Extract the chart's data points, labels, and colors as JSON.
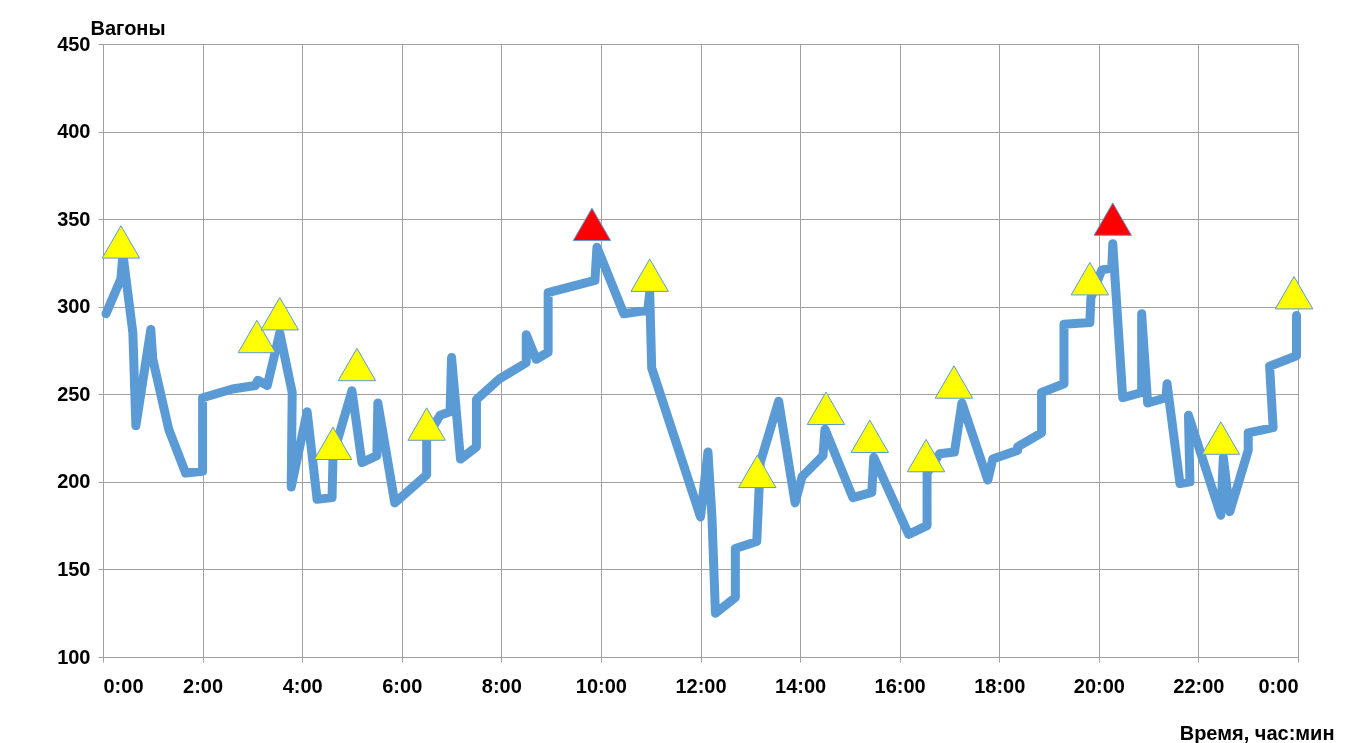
{
  "chart_data": {
    "type": "line",
    "xlabel": "Время, час:мин",
    "ylabel": "Вагоны",
    "xlim": [
      0,
      24
    ],
    "ylim": [
      100,
      450
    ],
    "xticks": [
      {
        "value": 0,
        "label": "0:00"
      },
      {
        "value": 2,
        "label": "2:00"
      },
      {
        "value": 4,
        "label": "4:00"
      },
      {
        "value": 6,
        "label": "6:00"
      },
      {
        "value": 8,
        "label": "8:00"
      },
      {
        "value": 10,
        "label": "10:00"
      },
      {
        "value": 12,
        "label": "12:00"
      },
      {
        "value": 14,
        "label": "14:00"
      },
      {
        "value": 16,
        "label": "16:00"
      },
      {
        "value": 18,
        "label": "18:00"
      },
      {
        "value": 20,
        "label": "20:00"
      },
      {
        "value": 22,
        "label": "22:00"
      },
      {
        "value": 24,
        "label": "0:00"
      }
    ],
    "yticks": [
      100,
      150,
      200,
      250,
      300,
      350,
      400,
      450
    ],
    "grid": true,
    "series": [
      {
        "color": "#5b9bd5",
        "marker": "none",
        "line_style": "solid",
        "x": [
          0.06,
          0.36,
          0.4,
          0.6,
          0.66,
          0.96,
          1.0,
          1.32,
          1.66,
          2.0,
          2.0,
          2.6,
          3.06,
          3.11,
          3.3,
          3.55,
          3.8,
          3.78,
          4.1,
          4.3,
          4.6,
          4.62,
          5.0,
          5.2,
          5.5,
          5.52,
          5.86,
          6.5,
          6.5,
          6.77,
          6.97,
          7.0,
          7.18,
          7.5,
          7.5,
          7.97,
          8.5,
          8.5,
          8.7,
          8.94,
          8.94,
          9.88,
          9.92,
          10.46,
          10.94,
          10.98,
          11.02,
          12.0,
          12.15,
          12.23,
          12.3,
          12.7,
          12.7,
          13.13,
          13.2,
          13.57,
          13.9,
          14.04,
          14.46,
          14.5,
          15.06,
          15.44,
          15.48,
          16.18,
          16.55,
          16.55,
          16.8,
          17.1,
          17.25,
          17.77,
          17.87,
          18.37,
          18.37,
          18.85,
          18.85,
          19.3,
          19.3,
          19.82,
          19.84,
          20.06,
          20.26,
          20.28,
          20.48,
          20.86,
          20.86,
          20.98,
          21.35,
          21.37,
          21.63,
          21.83,
          21.8,
          22.45,
          22.5,
          22.63,
          23.0,
          23.0,
          23.5,
          23.43,
          23.97,
          23.97
        ],
        "values": [
          296,
          316,
          330,
          285,
          232,
          287,
          270,
          230,
          205,
          206,
          248,
          253,
          255,
          258,
          255,
          285,
          251,
          197,
          240,
          190,
          191,
          215,
          252,
          211,
          215,
          245,
          188,
          204,
          225,
          238,
          240,
          271,
          213,
          220,
          247,
          259,
          268,
          284,
          270,
          274,
          308,
          315,
          334,
          296,
          298,
          308,
          265,
          180,
          217,
          180,
          125,
          134,
          162,
          166,
          211,
          246,
          188,
          203,
          215,
          230,
          191,
          194,
          214,
          170,
          175,
          205,
          216,
          217,
          245,
          201,
          213,
          218,
          220,
          228,
          251,
          256,
          290,
          291,
          305,
          321,
          322,
          336,
          248,
          251,
          296,
          245,
          248,
          256,
          199,
          200,
          238,
          181,
          214,
          183,
          218,
          228,
          231,
          266,
          272,
          295
        ]
      },
      {
        "type": "scatter",
        "color": "#ffff00",
        "marker": "triangle",
        "x": [
          0.36,
          3.09,
          3.55,
          4.62,
          5.1,
          6.5,
          10.98,
          13.14,
          14.52,
          15.4,
          16.53,
          17.09,
          19.82,
          22.45,
          23.92
        ],
        "values": [
          337,
          283,
          296,
          222,
          267,
          233,
          318,
          206,
          242,
          226,
          215,
          257,
          316,
          225,
          308
        ]
      },
      {
        "type": "scatter",
        "color": "#ff0000",
        "marker": "triangle",
        "x": [
          9.82,
          20.28
        ],
        "values": [
          347,
          350
        ]
      }
    ]
  }
}
